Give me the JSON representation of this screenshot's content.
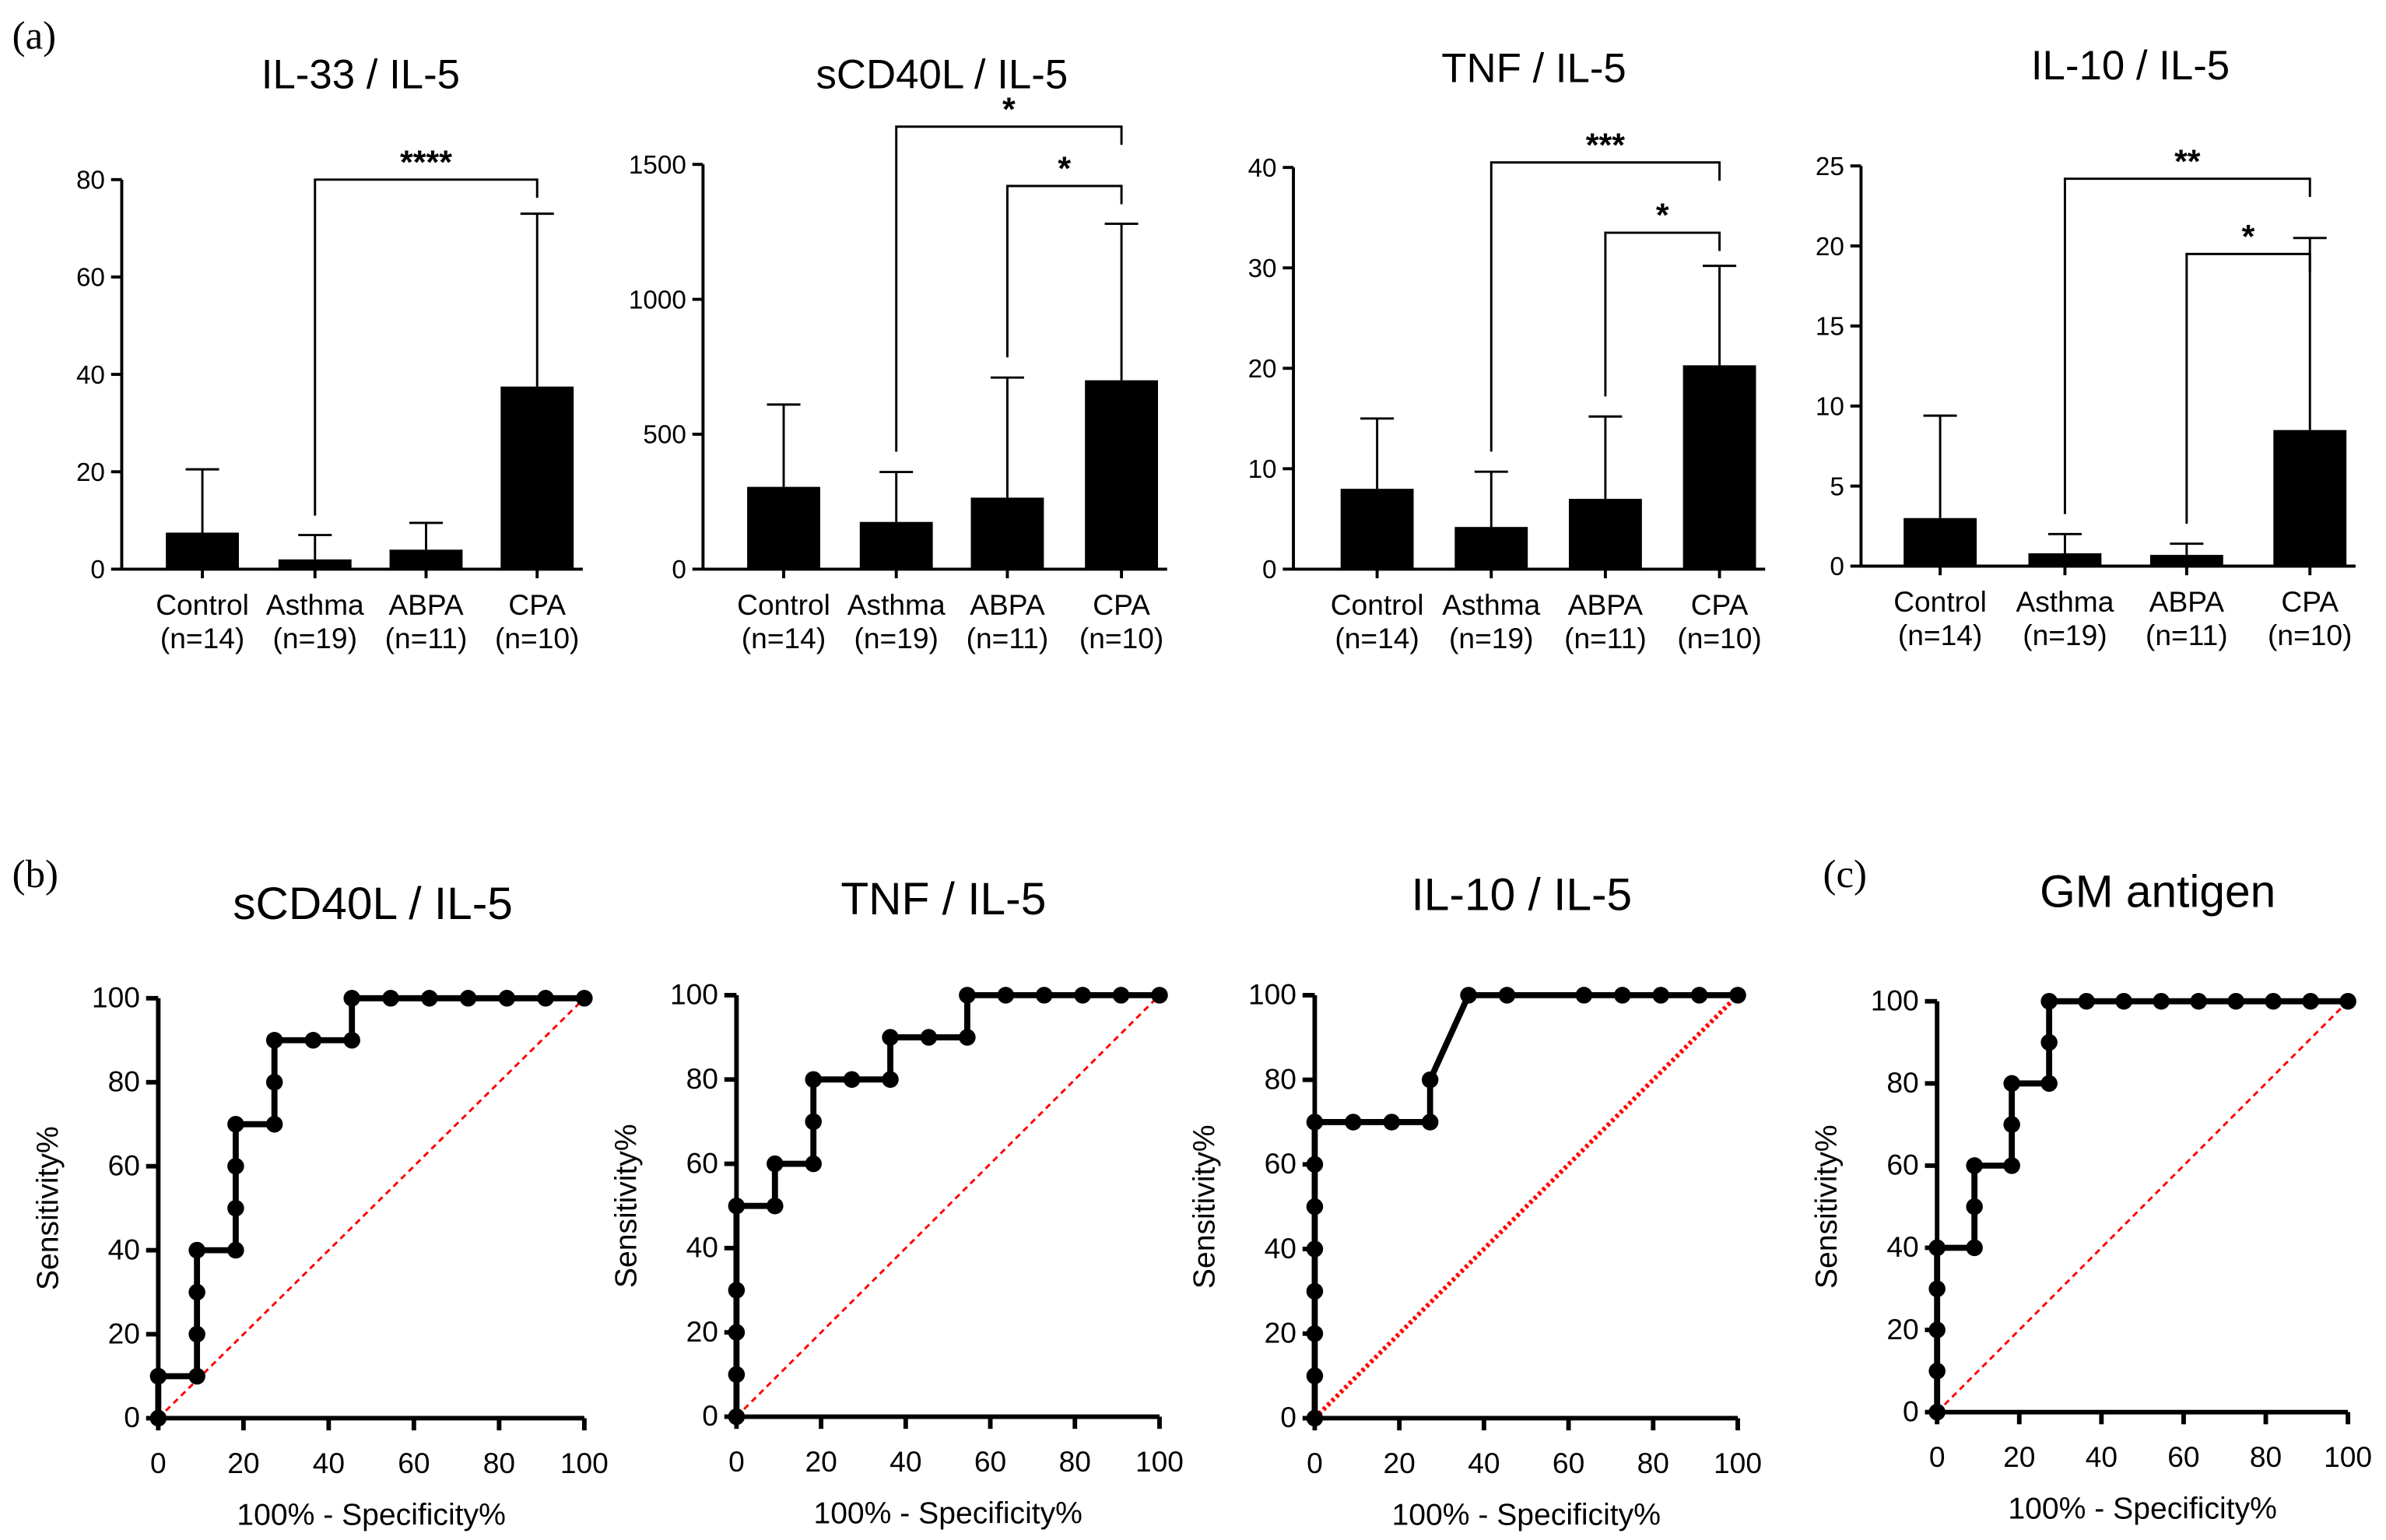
{
  "panel_labels": {
    "a": "(a)",
    "b": "(b)",
    "c": "(c)"
  },
  "chart_data": [
    {
      "type": "bar",
      "panel": "a",
      "title": "IL-33 / IL-5",
      "categories": [
        "Control",
        "Asthma",
        "ABPA",
        "CPA"
      ],
      "group_n": [
        "(n=14)",
        "(n=19)",
        "(n=11)",
        "(n=10)"
      ],
      "values": [
        7.5,
        2,
        4,
        37.5
      ],
      "error_upper": [
        20.5,
        7,
        9.5,
        73
      ],
      "ylim": [
        0,
        80
      ],
      "yticks": [
        0,
        20,
        40,
        60,
        80
      ],
      "color": "#000000",
      "significance": [
        {
          "from": 1,
          "to": 3,
          "label": "****",
          "level": 80
        }
      ]
    },
    {
      "type": "bar",
      "panel": "a",
      "title": "sCD40L / IL-5",
      "categories": [
        "Control",
        "Asthma",
        "ABPA",
        "CPA"
      ],
      "group_n": [
        "(n=14)",
        "(n=19)",
        "(n=11)",
        "(n=10)"
      ],
      "values": [
        305,
        175,
        265,
        700
      ],
      "error_upper": [
        610,
        360,
        710,
        1280
      ],
      "ylim": [
        0,
        1500
      ],
      "yticks": [
        0,
        500,
        1000,
        1500
      ],
      "color": "#000000",
      "significance": [
        {
          "from": 1,
          "to": 3,
          "label": "*",
          "level": 1640
        },
        {
          "from": 2,
          "to": 3,
          "label": "*",
          "level": 1420
        }
      ]
    },
    {
      "type": "bar",
      "panel": "a",
      "title": "TNF / IL-5",
      "categories": [
        "Control",
        "Asthma",
        "ABPA",
        "CPA"
      ],
      "group_n": [
        "(n=14)",
        "(n=19)",
        "(n=11)",
        "(n=10)"
      ],
      "values": [
        8,
        4.2,
        7,
        20.3
      ],
      "error_upper": [
        15,
        9.7,
        15.2,
        30.2
      ],
      "ylim": [
        0,
        40
      ],
      "yticks": [
        0,
        10,
        20,
        30,
        40
      ],
      "color": "#000000",
      "significance": [
        {
          "from": 1,
          "to": 3,
          "label": "***",
          "level": 40.5
        },
        {
          "from": 2,
          "to": 3,
          "label": "*",
          "level": 33.5
        }
      ]
    },
    {
      "type": "bar",
      "panel": "a",
      "title": "IL-10 / IL-5",
      "categories": [
        "Control",
        "Asthma",
        "ABPA",
        "CPA"
      ],
      "group_n": [
        "(n=14)",
        "(n=19)",
        "(n=11)",
        "(n=10)"
      ],
      "values": [
        3,
        0.8,
        0.7,
        8.5
      ],
      "error_upper": [
        9.4,
        2,
        1.4,
        20.5
      ],
      "ylim": [
        0,
        25
      ],
      "yticks": [
        0,
        5,
        10,
        15,
        20,
        25
      ],
      "color": "#000000",
      "significance": [
        {
          "from": 1,
          "to": 3,
          "label": "**",
          "level": 24.2
        },
        {
          "from": 2,
          "to": 3,
          "label": "*",
          "level": 19.5
        }
      ]
    },
    {
      "type": "line",
      "panel": "b",
      "title": "sCD40L / IL-5",
      "xlabel": "100% - Specificity%",
      "ylabel": "Sensitivity%",
      "xlim": [
        0,
        100
      ],
      "ylim": [
        0,
        100
      ],
      "ticks": [
        0,
        20,
        40,
        60,
        80,
        100
      ],
      "reference_color": "#ff0000",
      "x": [
        0,
        0,
        9.09,
        9.09,
        9.09,
        9.09,
        18.18,
        18.18,
        18.18,
        18.18,
        27.27,
        27.27,
        27.27,
        36.36,
        45.45,
        45.45,
        54.55,
        63.64,
        72.73,
        81.82,
        90.91,
        100
      ],
      "y": [
        0,
        10,
        10,
        20,
        30,
        40,
        40,
        50,
        60,
        70,
        70,
        80,
        90,
        90,
        90,
        100,
        100,
        100,
        100,
        100,
        100,
        100
      ]
    },
    {
      "type": "line",
      "panel": "b",
      "title": "TNF / IL-5",
      "xlabel": "100% - Specificity%",
      "ylabel": "Sensitivity%",
      "xlim": [
        0,
        100
      ],
      "ylim": [
        0,
        100
      ],
      "ticks": [
        0,
        20,
        40,
        60,
        80,
        100
      ],
      "reference_color": "#ff0000",
      "x": [
        0,
        0,
        0,
        0,
        0,
        9.09,
        9.09,
        18.18,
        18.18,
        18.18,
        27.27,
        36.36,
        36.36,
        45.45,
        54.55,
        54.55,
        63.64,
        72.73,
        81.82,
        90.91,
        100
      ],
      "y": [
        0,
        10,
        20,
        30,
        50,
        50,
        60,
        60,
        70,
        80,
        80,
        80,
        90,
        90,
        90,
        100,
        100,
        100,
        100,
        100,
        100
      ]
    },
    {
      "type": "line",
      "panel": "b",
      "title": "IL-10 / IL-5",
      "xlabel": "100% - Specificity%",
      "ylabel": "Sensitivity%",
      "xlim": [
        0,
        100
      ],
      "ylim": [
        0,
        100
      ],
      "ticks": [
        0,
        20,
        40,
        60,
        80,
        100
      ],
      "reference_color": "#ff0000",
      "x": [
        0,
        0,
        0,
        0,
        0,
        0,
        0,
        0,
        9.09,
        18.18,
        27.27,
        27.27,
        36.36,
        45.45,
        63.64,
        72.73,
        81.82,
        90.91,
        100
      ],
      "y": [
        0,
        10,
        20,
        30,
        40,
        50,
        60,
        70,
        70,
        70,
        70,
        80,
        100,
        100,
        100,
        100,
        100,
        100,
        100
      ]
    },
    {
      "type": "line",
      "panel": "c",
      "title": "GM antigen",
      "xlabel": "100% - Specificity%",
      "ylabel": "Sensitivity%",
      "xlim": [
        0,
        100
      ],
      "ylim": [
        0,
        100
      ],
      "ticks": [
        0,
        20,
        40,
        60,
        80,
        100
      ],
      "reference_color": "#ff0000",
      "x": [
        0,
        0,
        0,
        0,
        0,
        9.09,
        9.09,
        9.09,
        18.18,
        18.18,
        18.18,
        27.27,
        27.27,
        27.27,
        36.36,
        45.45,
        54.55,
        63.64,
        72.73,
        81.82,
        90.91,
        100
      ],
      "y": [
        0,
        10,
        20,
        30,
        40,
        40,
        50,
        60,
        60,
        70,
        80,
        80,
        90,
        100,
        100,
        100,
        100,
        100,
        100,
        100,
        100,
        100
      ]
    }
  ]
}
